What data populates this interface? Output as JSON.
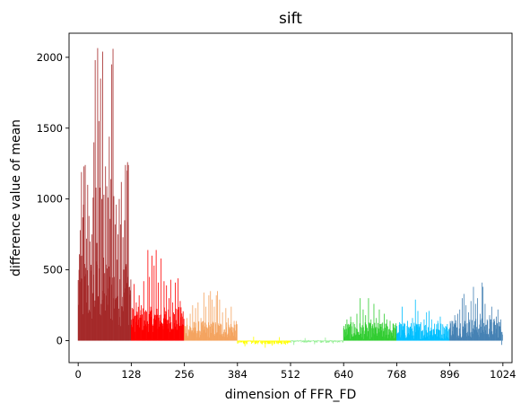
{
  "chart_data": {
    "type": "bar",
    "title": "sift",
    "xlabel": "dimension of FFR_FD",
    "ylabel": "difference value of mean",
    "xlim": [
      -22,
      1046
    ],
    "ylim": [
      -155,
      2170
    ],
    "xticks": [
      0,
      128,
      256,
      384,
      512,
      640,
      768,
      896,
      1024
    ],
    "yticks": [
      0,
      500,
      1000,
      1500,
      2000
    ],
    "grid": false,
    "legend": "none",
    "series": [
      {
        "range": [
          0,
          127
        ],
        "color": "#a52a2a",
        "typical": 350,
        "noise": 250,
        "peaks": [
          [
            2,
            500
          ],
          [
            3,
            610
          ],
          [
            5,
            780
          ],
          [
            8,
            1190
          ],
          [
            9,
            600
          ],
          [
            11,
            870
          ],
          [
            13,
            960
          ],
          [
            14,
            1230
          ],
          [
            17,
            1240
          ],
          [
            20,
            720
          ],
          [
            23,
            1100
          ],
          [
            26,
            880
          ],
          [
            29,
            700
          ],
          [
            33,
            750
          ],
          [
            36,
            1010
          ],
          [
            38,
            1400
          ],
          [
            41,
            1980
          ],
          [
            43,
            1080
          ],
          [
            45,
            690
          ],
          [
            47,
            2065
          ],
          [
            50,
            1550
          ],
          [
            52,
            1080
          ],
          [
            54,
            1850
          ],
          [
            57,
            1000
          ],
          [
            59,
            2040
          ],
          [
            62,
            1030
          ],
          [
            66,
            1230
          ],
          [
            69,
            1090
          ],
          [
            72,
            1010
          ],
          [
            75,
            1440
          ],
          [
            77,
            860
          ],
          [
            79,
            1140
          ],
          [
            81,
            1950
          ],
          [
            84,
            2060
          ],
          [
            86,
            1020
          ],
          [
            89,
            820
          ],
          [
            92,
            960
          ],
          [
            96,
            750
          ],
          [
            99,
            1000
          ],
          [
            102,
            820
          ],
          [
            104,
            1120
          ],
          [
            108,
            730
          ],
          [
            112,
            850
          ],
          [
            114,
            1240
          ],
          [
            116,
            540
          ],
          [
            118,
            1200
          ],
          [
            119,
            1260
          ],
          [
            121,
            1240
          ],
          [
            124,
            380
          ]
        ]
      },
      {
        "range": [
          128,
          255
        ],
        "color": "#ff0000",
        "typical": 150,
        "noise": 90,
        "peaks": [
          [
            135,
            400
          ],
          [
            140,
            270
          ],
          [
            147,
            320
          ],
          [
            152,
            250
          ],
          [
            158,
            420
          ],
          [
            168,
            640
          ],
          [
            172,
            450
          ],
          [
            178,
            600
          ],
          [
            183,
            530
          ],
          [
            188,
            640
          ],
          [
            193,
            410
          ],
          [
            200,
            580
          ],
          [
            207,
            420
          ],
          [
            213,
            390
          ],
          [
            219,
            300
          ],
          [
            223,
            430
          ],
          [
            228,
            270
          ],
          [
            234,
            410
          ],
          [
            241,
            440
          ],
          [
            246,
            280
          ],
          [
            251,
            170
          ]
        ]
      },
      {
        "range": [
          256,
          383
        ],
        "color": "#f4a460",
        "typical": 80,
        "noise": 60,
        "peaks": [
          [
            262,
            160
          ],
          [
            270,
            190
          ],
          [
            276,
            250
          ],
          [
            283,
            230
          ],
          [
            289,
            270
          ],
          [
            296,
            160
          ],
          [
            303,
            340
          ],
          [
            308,
            240
          ],
          [
            315,
            320
          ],
          [
            319,
            350
          ],
          [
            323,
            290
          ],
          [
            328,
            240
          ],
          [
            333,
            320
          ],
          [
            336,
            350
          ],
          [
            341,
            290
          ],
          [
            348,
            200
          ],
          [
            356,
            230
          ],
          [
            362,
            160
          ],
          [
            369,
            240
          ],
          [
            376,
            140
          ]
        ]
      },
      {
        "range": [
          384,
          511
        ],
        "color": "#ffff00",
        "typical": -12,
        "noise": 14,
        "peaks": [
          [
            402,
            -40
          ],
          [
            423,
            28
          ],
          [
            451,
            -50
          ],
          [
            468,
            -35
          ],
          [
            485,
            25
          ],
          [
            500,
            -28
          ]
        ]
      },
      {
        "range": [
          512,
          639
        ],
        "color": "#90ee90",
        "typical": -5,
        "noise": 10,
        "peaks": [
          [
            520,
            -30
          ],
          [
            547,
            18
          ],
          [
            570,
            -25
          ],
          [
            596,
            22
          ],
          [
            615,
            -20
          ]
        ]
      },
      {
        "range": [
          640,
          767
        ],
        "color": "#32cd32",
        "typical": 70,
        "noise": 60,
        "peaks": [
          [
            648,
            150
          ],
          [
            657,
            170
          ],
          [
            663,
            130
          ],
          [
            672,
            190
          ],
          [
            680,
            300
          ],
          [
            687,
            220
          ],
          [
            693,
            180
          ],
          [
            700,
            300
          ],
          [
            706,
            150
          ],
          [
            713,
            260
          ],
          [
            719,
            160
          ],
          [
            726,
            220
          ],
          [
            732,
            120
          ],
          [
            738,
            190
          ],
          [
            744,
            150
          ],
          [
            752,
            140
          ],
          [
            760,
            120
          ]
        ]
      },
      {
        "range": [
          768,
          895
        ],
        "color": "#00bfff",
        "typical": 70,
        "noise": 60,
        "peaks": [
          [
            775,
            130
          ],
          [
            781,
            240
          ],
          [
            788,
            120
          ],
          [
            794,
            140
          ],
          [
            800,
            100
          ],
          [
            806,
            160
          ],
          [
            813,
            290
          ],
          [
            819,
            210
          ],
          [
            826,
            130
          ],
          [
            834,
            150
          ],
          [
            840,
            200
          ],
          [
            846,
            210
          ],
          [
            852,
            150
          ],
          [
            859,
            120
          ],
          [
            867,
            140
          ],
          [
            873,
            170
          ],
          [
            880,
            100
          ],
          [
            887,
            100
          ]
        ]
      },
      {
        "range": [
          896,
          1023
        ],
        "color": "#4682b4",
        "typical": 90,
        "noise": 70,
        "peaks": [
          [
            901,
            140
          ],
          [
            908,
            180
          ],
          [
            915,
            190
          ],
          [
            920,
            220
          ],
          [
            926,
            300
          ],
          [
            930,
            330
          ],
          [
            935,
            250
          ],
          [
            941,
            200
          ],
          [
            947,
            280
          ],
          [
            953,
            380
          ],
          [
            958,
            260
          ],
          [
            963,
            300
          ],
          [
            969,
            190
          ],
          [
            974,
            410
          ],
          [
            976,
            380
          ],
          [
            981,
            260
          ],
          [
            986,
            150
          ],
          [
            992,
            180
          ],
          [
            997,
            240
          ],
          [
            1002,
            150
          ],
          [
            1008,
            170
          ],
          [
            1012,
            220
          ],
          [
            1016,
            130
          ],
          [
            1021,
            -30
          ]
        ]
      }
    ]
  }
}
